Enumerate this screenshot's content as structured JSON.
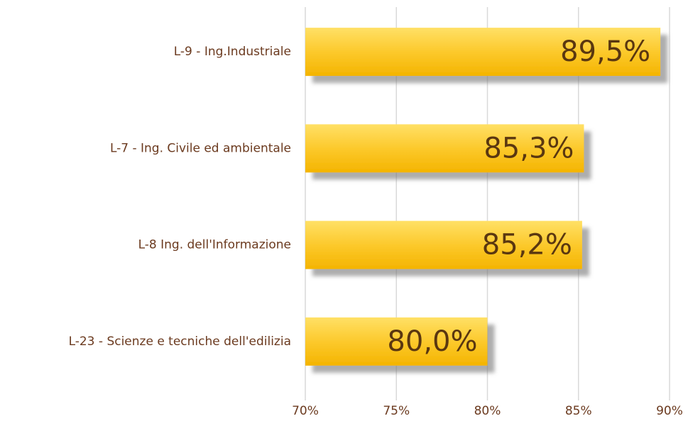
{
  "chart_data": {
    "type": "bar",
    "orientation": "horizontal",
    "categories": [
      "L-9 - Ing.Industriale",
      "L-7 - Ing. Civile ed ambientale",
      "L-8 Ing. dell'Informazione",
      "L-23 - Scienze e tecniche dell'edilizia"
    ],
    "values": [
      89.5,
      85.3,
      85.2,
      80.0
    ],
    "value_labels": [
      "89,5%",
      "85,3%",
      "85,2%",
      "80,0%"
    ],
    "color": "#fbc82a",
    "xlim": [
      70,
      90
    ],
    "xticks": [
      {
        "value": 70,
        "label": "70%"
      },
      {
        "value": 75,
        "label": "75%"
      },
      {
        "value": 80,
        "label": "80%"
      },
      {
        "value": 85,
        "label": "85%"
      },
      {
        "value": 90,
        "label": "90%"
      }
    ],
    "grid": true
  }
}
